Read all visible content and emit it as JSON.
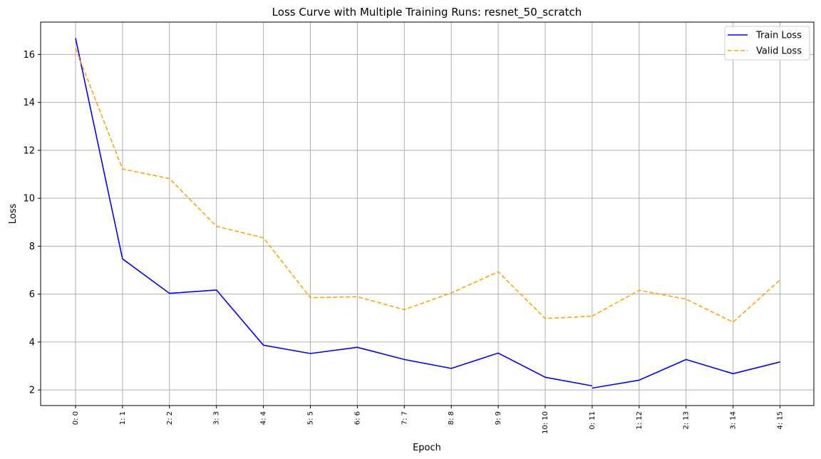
{
  "chart_data": {
    "type": "line",
    "title": "Loss Curve with Multiple Training Runs: resnet_50_scratch",
    "xlabel": "Epoch",
    "ylabel": "Loss",
    "categories": [
      "0: 0",
      "1: 1",
      "2: 2",
      "3: 3",
      "4: 4",
      "5: 5",
      "6: 6",
      "7: 7",
      "8: 8",
      "9: 9",
      "10: 10",
      "0: 11",
      "1: 12",
      "2: 13",
      "3: 14",
      "4: 15"
    ],
    "ylim": [
      1.35,
      17.35
    ],
    "yticks": [
      2,
      4,
      6,
      8,
      10,
      12,
      14,
      16
    ],
    "grid": true,
    "legend_position": "top-right",
    "series": [
      {
        "name": "Train Loss",
        "color": "#0000ff",
        "style": "solid",
        "segments": [
          {
            "x": [
              0,
              1,
              2,
              3,
              4,
              5,
              6,
              7,
              8,
              9,
              10,
              11
            ],
            "values": [
              16.68,
              7.47,
              6.03,
              6.17,
              3.87,
              3.52,
              3.78,
              3.27,
              2.9,
              3.54,
              2.53,
              2.17
            ]
          },
          {
            "x": [
              11,
              12,
              13,
              14,
              15
            ],
            "values": [
              2.08,
              2.41,
              3.27,
              2.68,
              3.17
            ]
          }
        ]
      },
      {
        "name": "Valid Loss",
        "color": "#ffa500",
        "style": "dashed",
        "segments": [
          {
            "x": [
              0,
              1,
              2,
              3,
              4,
              5,
              6,
              7,
              8,
              9,
              10,
              11
            ],
            "values": [
              16.25,
              11.22,
              10.82,
              8.83,
              8.35,
              5.85,
              5.89,
              5.35,
              6.05,
              6.93,
              4.98,
              5.08
            ]
          },
          {
            "x": [
              11,
              12,
              13,
              14,
              15
            ],
            "values": [
              5.08,
              6.16,
              5.79,
              4.83,
              6.59
            ]
          }
        ]
      }
    ]
  }
}
